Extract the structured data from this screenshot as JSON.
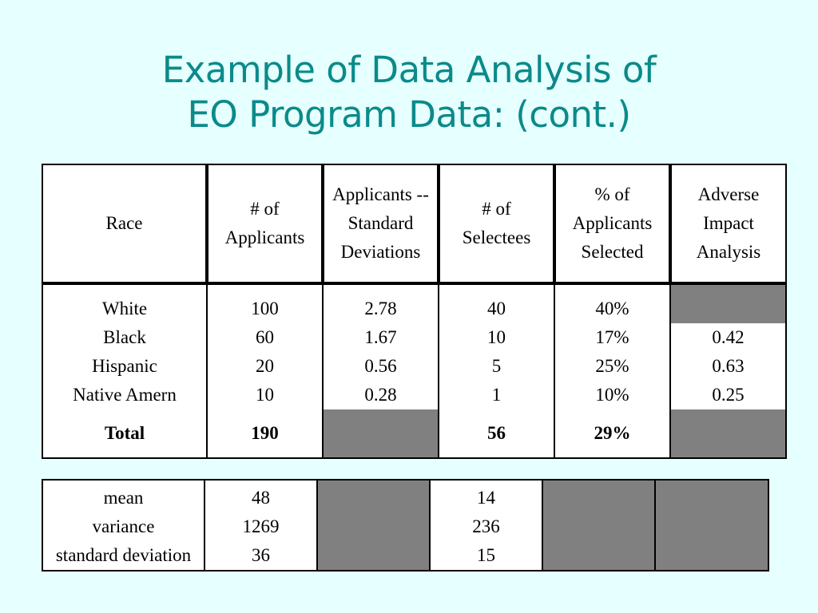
{
  "title": {
    "line1": "Example of Data Analysis of",
    "line2": "EO Program Data: (cont.)"
  },
  "colors": {
    "background": "#e6ffff",
    "title": "#0b8a8a",
    "shaded_cell": "#808080",
    "white_cell": "#ffffff"
  },
  "table": {
    "headers": [
      [
        "Race"
      ],
      [
        "# of",
        "Applicants"
      ],
      [
        "Applicants --",
        "Standard",
        "Deviations"
      ],
      [
        "# of",
        "Selectees"
      ],
      [
        "% of",
        "Applicants",
        "Selected"
      ],
      [
        "Adverse",
        "Impact",
        "Analysis"
      ]
    ],
    "rows": [
      {
        "race": "White",
        "applicants": "100",
        "sd": "2.78",
        "selectees": "40",
        "pct": "40%",
        "adverse": ""
      },
      {
        "race": "Black",
        "applicants": "60",
        "sd": "1.67",
        "selectees": "10",
        "pct": "17%",
        "adverse": "0.42"
      },
      {
        "race": "Hispanic",
        "applicants": "20",
        "sd": "0.56",
        "selectees": "5",
        "pct": "25%",
        "adverse": "0.63"
      },
      {
        "race": "Native Amern",
        "applicants": "10",
        "sd": "0.28",
        "selectees": "1",
        "pct": "10%",
        "adverse": "0.25"
      }
    ],
    "total": {
      "label": "Total",
      "applicants": "190",
      "selectees": "56",
      "pct": "29%"
    }
  },
  "stats": {
    "rows": [
      {
        "label": "mean",
        "applicants": "48",
        "selectees": "14"
      },
      {
        "label": "variance",
        "applicants": "1269",
        "selectees": "236"
      },
      {
        "label": "standard deviation",
        "applicants": "36",
        "selectees": "15"
      }
    ]
  }
}
